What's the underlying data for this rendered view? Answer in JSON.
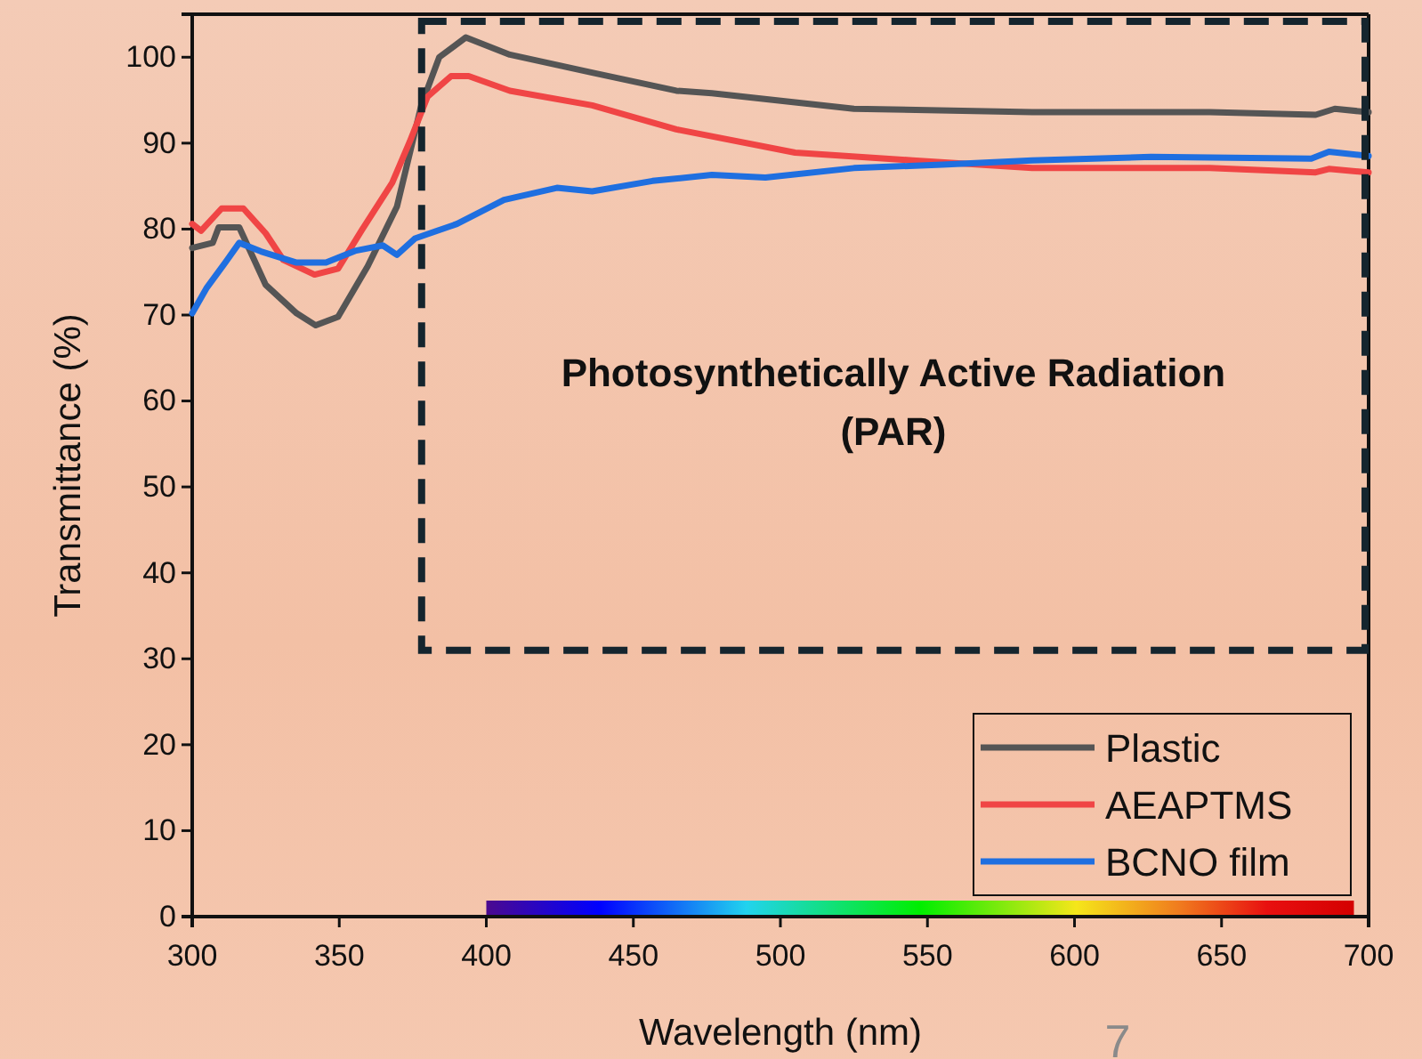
{
  "chart_data": {
    "type": "line",
    "xlabel": "Wavelength (nm)",
    "ylabel": "Transmittance (%)",
    "xlim": [
      300,
      700
    ],
    "ylim": [
      0,
      105
    ],
    "xticks": [
      300,
      350,
      400,
      450,
      500,
      550,
      600,
      650,
      700
    ],
    "yticks": [
      0,
      10,
      20,
      30,
      40,
      50,
      60,
      70,
      80,
      90,
      100
    ],
    "grid": false,
    "legend": "bottom right",
    "line_style": "solid",
    "marker": "none",
    "annotations": [
      "Photosynthetically Active Radiation\n(PAR)",
      "7"
    ],
    "series": [
      {
        "name": "Plastic",
        "color": "#555555",
        "x": [
          300,
          307,
          309,
          316,
          325,
          335.5,
          342,
          349.6,
          359.7,
          369.6,
          377.9,
          384,
          393,
          408,
          436,
          464.6,
          476.7,
          525,
          585.6,
          646,
          682,
          688.5,
          700
        ],
        "values": [
          77.8,
          78.4,
          80.2,
          80.2,
          73.5,
          70.2,
          68.8,
          69.8,
          75.7,
          82.6,
          94.4,
          100,
          102.3,
          100.3,
          98.2,
          96.1,
          95.8,
          94,
          93.6,
          93.6,
          93.3,
          94,
          93.6
        ]
      },
      {
        "name": "AEAPTMS",
        "color": "#f04545",
        "x": [
          300,
          303,
          310,
          317.4,
          325,
          331,
          341.6,
          349.6,
          357.7,
          368,
          374,
          380,
          388,
          394,
          408,
          436,
          464.6,
          505,
          545,
          585.6,
          646,
          682,
          686.5,
          700
        ],
        "values": [
          80.6,
          79.8,
          82.4,
          82.4,
          79.5,
          76.4,
          74.7,
          75.4,
          79.9,
          85.4,
          90.2,
          95.4,
          97.8,
          97.8,
          96.1,
          94.4,
          91.6,
          88.9,
          88,
          87.1,
          87.1,
          86.6,
          87,
          86.6
        ]
      },
      {
        "name": "BCNO film",
        "color": "#1f6fe0",
        "x": [
          300,
          305,
          311,
          316,
          323.4,
          335.5,
          345.5,
          355.7,
          364.8,
          369.6,
          375.7,
          390,
          406,
          424,
          436,
          456.5,
          476.7,
          494.9,
          525,
          555,
          585.6,
          626,
          680.5,
          686.5,
          700
        ],
        "values": [
          70.2,
          73.2,
          76,
          78.4,
          77.4,
          76.1,
          76.1,
          77.5,
          78.1,
          77,
          78.9,
          80.6,
          83.4,
          84.8,
          84.4,
          85.6,
          86.3,
          86,
          87.1,
          87.5,
          88,
          88.4,
          88.2,
          89,
          88.5
        ]
      }
    ]
  }
}
